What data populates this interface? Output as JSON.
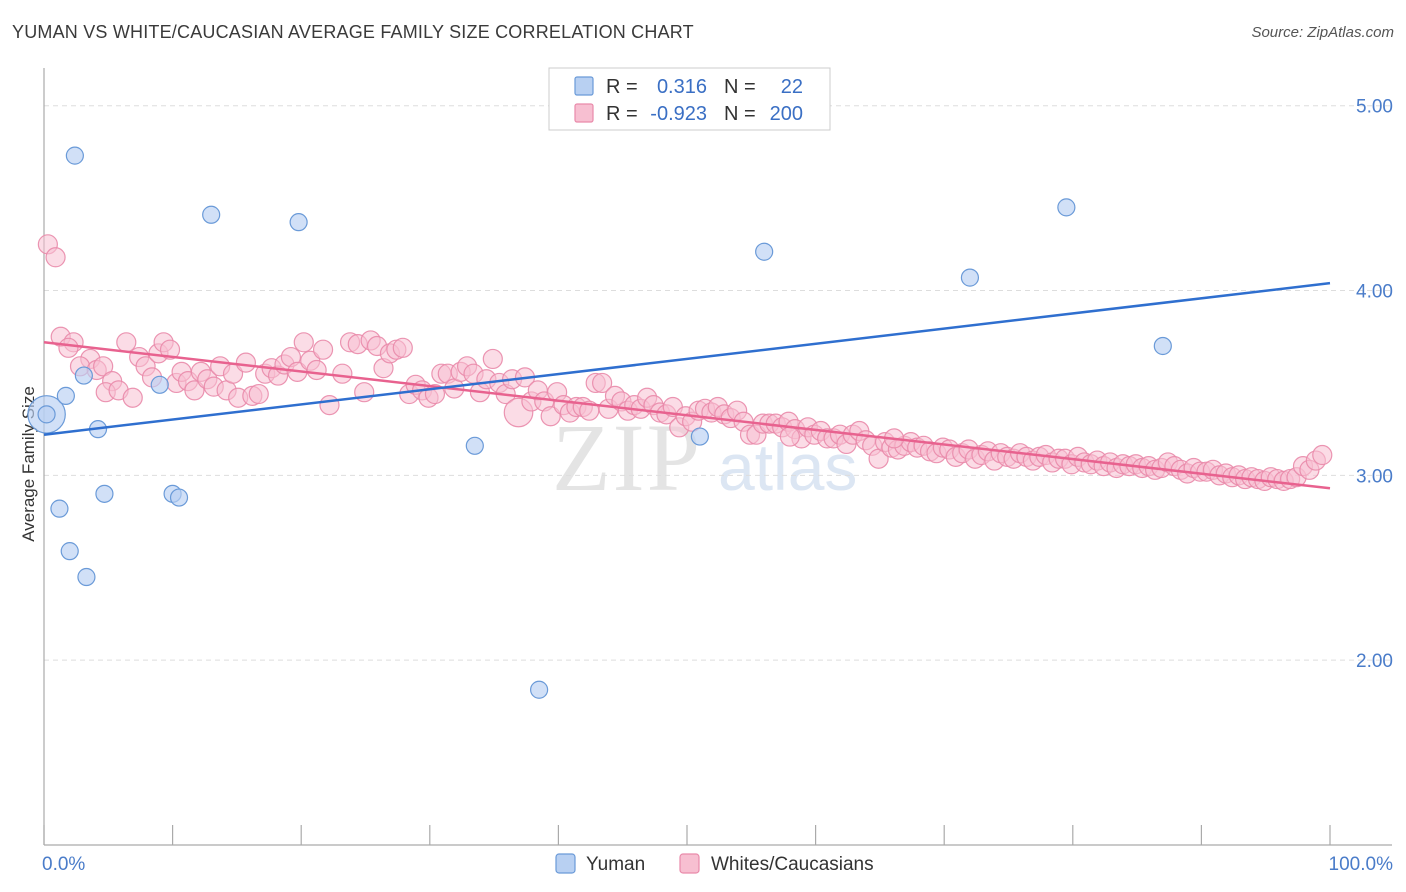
{
  "title": "YUMAN VS WHITE/CAUCASIAN AVERAGE FAMILY SIZE CORRELATION CHART",
  "source": "Source: ZipAtlas.com",
  "watermark": {
    "zip": "ZIP",
    "atlas": "atlas"
  },
  "legend": {
    "r_label": "R =",
    "n_label": "N =",
    "rows": [
      {
        "r": "0.316",
        "n": "22"
      },
      {
        "r": "-0.923",
        "n": "200"
      }
    ]
  },
  "chart_data": {
    "type": "scatter",
    "title": "YUMAN VS WHITE/CAUCASIAN AVERAGE FAMILY SIZE CORRELATION CHART",
    "xlabel": "",
    "ylabel": "Average Family Size",
    "xlim": [
      0,
      100
    ],
    "ylim": [
      1.0,
      5.15
    ],
    "x_tick_labels": [
      "0.0%",
      "100.0%"
    ],
    "y_ticks": [
      {
        "value": 2.0,
        "label": "2.00"
      },
      {
        "value": 3.0,
        "label": "3.00"
      },
      {
        "value": 4.0,
        "label": "4.00"
      },
      {
        "value": 5.0,
        "label": "5.00"
      }
    ],
    "colors": {
      "yuman_fill": "#b8d0f2",
      "yuman_stroke": "#6a9ad8",
      "yuman_line": "#2f6fcf",
      "white_fill": "#f7bfd1",
      "white_stroke": "#e98aaa",
      "white_line": "#e8628f",
      "grid": "#dddddd",
      "axis": "#aaaaaa"
    },
    "series": [
      {
        "name": "Yuman",
        "r": 0.316,
        "n": 22,
        "trend": {
          "x0": 0,
          "y0": 3.22,
          "x1": 100,
          "y1": 4.04
        },
        "points": [
          {
            "x": 0.2,
            "y": 3.33,
            "s": 2.2
          },
          {
            "x": 2.4,
            "y": 4.73
          },
          {
            "x": 13.0,
            "y": 4.41
          },
          {
            "x": 19.8,
            "y": 4.37
          },
          {
            "x": 1.7,
            "y": 3.43
          },
          {
            "x": 3.1,
            "y": 3.54
          },
          {
            "x": 9.0,
            "y": 3.49
          },
          {
            "x": 4.2,
            "y": 3.25
          },
          {
            "x": 4.7,
            "y": 2.9
          },
          {
            "x": 1.2,
            "y": 2.82
          },
          {
            "x": 2.0,
            "y": 2.59
          },
          {
            "x": 3.3,
            "y": 2.45
          },
          {
            "x": 10.0,
            "y": 2.9
          },
          {
            "x": 10.5,
            "y": 2.88
          },
          {
            "x": 33.5,
            "y": 3.16
          },
          {
            "x": 38.5,
            "y": 1.84
          },
          {
            "x": 51.0,
            "y": 3.21
          },
          {
            "x": 56.0,
            "y": 4.21
          },
          {
            "x": 72.0,
            "y": 4.07
          },
          {
            "x": 79.5,
            "y": 4.45
          },
          {
            "x": 87.0,
            "y": 3.7
          },
          {
            "x": 0.2,
            "y": 3.33
          }
        ]
      },
      {
        "name": "Whites/Caucasians",
        "r": -0.923,
        "n": 200,
        "trend": {
          "x0": 0,
          "y0": 3.72,
          "x1": 100,
          "y1": 2.93
        },
        "points": [
          {
            "x": 0.3,
            "y": 4.25
          },
          {
            "x": 0.9,
            "y": 4.18
          },
          {
            "x": 1.3,
            "y": 3.75
          },
          {
            "x": 2.3,
            "y": 3.72
          },
          {
            "x": 1.9,
            "y": 3.69
          },
          {
            "x": 3.6,
            "y": 3.63
          },
          {
            "x": 2.8,
            "y": 3.59
          },
          {
            "x": 4.1,
            "y": 3.57
          },
          {
            "x": 4.6,
            "y": 3.59
          },
          {
            "x": 5.3,
            "y": 3.51
          },
          {
            "x": 4.8,
            "y": 3.45
          },
          {
            "x": 5.8,
            "y": 3.46
          },
          {
            "x": 6.4,
            "y": 3.72
          },
          {
            "x": 6.9,
            "y": 3.42
          },
          {
            "x": 7.4,
            "y": 3.64
          },
          {
            "x": 7.9,
            "y": 3.59
          },
          {
            "x": 8.4,
            "y": 3.53
          },
          {
            "x": 8.9,
            "y": 3.66
          },
          {
            "x": 9.3,
            "y": 3.72
          },
          {
            "x": 9.8,
            "y": 3.68
          },
          {
            "x": 10.3,
            "y": 3.5
          },
          {
            "x": 10.7,
            "y": 3.56
          },
          {
            "x": 11.2,
            "y": 3.51
          },
          {
            "x": 11.7,
            "y": 3.46
          },
          {
            "x": 12.2,
            "y": 3.56
          },
          {
            "x": 12.7,
            "y": 3.52
          },
          {
            "x": 13.2,
            "y": 3.48
          },
          {
            "x": 13.7,
            "y": 3.59
          },
          {
            "x": 14.2,
            "y": 3.46
          },
          {
            "x": 14.7,
            "y": 3.55
          },
          {
            "x": 15.1,
            "y": 3.42
          },
          {
            "x": 15.7,
            "y": 3.61
          },
          {
            "x": 16.2,
            "y": 3.43
          },
          {
            "x": 16.7,
            "y": 3.44
          },
          {
            "x": 17.2,
            "y": 3.55
          },
          {
            "x": 17.7,
            "y": 3.58
          },
          {
            "x": 18.2,
            "y": 3.54
          },
          {
            "x": 18.7,
            "y": 3.6
          },
          {
            "x": 19.2,
            "y": 3.64
          },
          {
            "x": 19.7,
            "y": 3.56
          },
          {
            "x": 20.2,
            "y": 3.72
          },
          {
            "x": 20.7,
            "y": 3.62
          },
          {
            "x": 21.2,
            "y": 3.57
          },
          {
            "x": 21.7,
            "y": 3.68
          },
          {
            "x": 22.2,
            "y": 3.38
          },
          {
            "x": 23.2,
            "y": 3.55
          },
          {
            "x": 23.8,
            "y": 3.72
          },
          {
            "x": 24.4,
            "y": 3.71
          },
          {
            "x": 24.9,
            "y": 3.45
          },
          {
            "x": 25.4,
            "y": 3.73
          },
          {
            "x": 25.9,
            "y": 3.7
          },
          {
            "x": 26.4,
            "y": 3.58
          },
          {
            "x": 26.9,
            "y": 3.66
          },
          {
            "x": 27.4,
            "y": 3.68
          },
          {
            "x": 27.9,
            "y": 3.69
          },
          {
            "x": 28.4,
            "y": 3.44
          },
          {
            "x": 28.9,
            "y": 3.49
          },
          {
            "x": 29.4,
            "y": 3.46
          },
          {
            "x": 29.9,
            "y": 3.42
          },
          {
            "x": 30.4,
            "y": 3.44
          },
          {
            "x": 30.9,
            "y": 3.55
          },
          {
            "x": 31.4,
            "y": 3.55
          },
          {
            "x": 31.9,
            "y": 3.47
          },
          {
            "x": 32.4,
            "y": 3.56
          },
          {
            "x": 32.9,
            "y": 3.59
          },
          {
            "x": 33.4,
            "y": 3.55
          },
          {
            "x": 33.9,
            "y": 3.45
          },
          {
            "x": 34.4,
            "y": 3.52
          },
          {
            "x": 34.9,
            "y": 3.63
          },
          {
            "x": 35.4,
            "y": 3.5
          },
          {
            "x": 35.9,
            "y": 3.44
          },
          {
            "x": 36.4,
            "y": 3.52
          },
          {
            "x": 36.9,
            "y": 3.34,
            "s": 1.5
          },
          {
            "x": 37.4,
            "y": 3.53
          },
          {
            "x": 37.9,
            "y": 3.4
          },
          {
            "x": 38.4,
            "y": 3.46
          },
          {
            "x": 38.9,
            "y": 3.4
          },
          {
            "x": 39.4,
            "y": 3.32
          },
          {
            "x": 39.9,
            "y": 3.45
          },
          {
            "x": 40.4,
            "y": 3.38
          },
          {
            "x": 40.9,
            "y": 3.34
          },
          {
            "x": 41.4,
            "y": 3.37
          },
          {
            "x": 41.9,
            "y": 3.37
          },
          {
            "x": 42.4,
            "y": 3.35
          },
          {
            "x": 42.9,
            "y": 3.5
          },
          {
            "x": 43.4,
            "y": 3.5
          },
          {
            "x": 43.9,
            "y": 3.36
          },
          {
            "x": 44.4,
            "y": 3.43
          },
          {
            "x": 44.9,
            "y": 3.4
          },
          {
            "x": 45.4,
            "y": 3.35
          },
          {
            "x": 45.9,
            "y": 3.38
          },
          {
            "x": 46.4,
            "y": 3.36
          },
          {
            "x": 46.9,
            "y": 3.42
          },
          {
            "x": 47.4,
            "y": 3.38
          },
          {
            "x": 47.9,
            "y": 3.34
          },
          {
            "x": 48.4,
            "y": 3.33
          },
          {
            "x": 48.9,
            "y": 3.37
          },
          {
            "x": 49.4,
            "y": 3.26
          },
          {
            "x": 49.9,
            "y": 3.32
          },
          {
            "x": 50.4,
            "y": 3.29
          },
          {
            "x": 50.9,
            "y": 3.35
          },
          {
            "x": 51.4,
            "y": 3.36
          },
          {
            "x": 51.9,
            "y": 3.34
          },
          {
            "x": 52.4,
            "y": 3.37
          },
          {
            "x": 52.9,
            "y": 3.33
          },
          {
            "x": 53.4,
            "y": 3.31
          },
          {
            "x": 53.9,
            "y": 3.35
          },
          {
            "x": 54.4,
            "y": 3.29
          },
          {
            "x": 54.9,
            "y": 3.22
          },
          {
            "x": 55.4,
            "y": 3.22
          },
          {
            "x": 55.9,
            "y": 3.28
          },
          {
            "x": 56.4,
            "y": 3.28
          },
          {
            "x": 56.9,
            "y": 3.28
          },
          {
            "x": 57.4,
            "y": 3.26
          },
          {
            "x": 57.9,
            "y": 3.29
          },
          {
            "x": 58.4,
            "y": 3.25
          },
          {
            "x": 58.9,
            "y": 3.2
          },
          {
            "x": 59.4,
            "y": 3.26
          },
          {
            "x": 59.9,
            "y": 3.22
          },
          {
            "x": 60.4,
            "y": 3.24
          },
          {
            "x": 60.9,
            "y": 3.2
          },
          {
            "x": 61.4,
            "y": 3.2
          },
          {
            "x": 61.9,
            "y": 3.22
          },
          {
            "x": 62.4,
            "y": 3.17
          },
          {
            "x": 62.9,
            "y": 3.22
          },
          {
            "x": 63.4,
            "y": 3.24
          },
          {
            "x": 63.9,
            "y": 3.19
          },
          {
            "x": 64.4,
            "y": 3.16
          },
          {
            "x": 64.9,
            "y": 3.09
          },
          {
            "x": 65.4,
            "y": 3.18
          },
          {
            "x": 65.9,
            "y": 3.15
          },
          {
            "x": 66.4,
            "y": 3.14
          },
          {
            "x": 66.9,
            "y": 3.16
          },
          {
            "x": 67.4,
            "y": 3.18
          },
          {
            "x": 67.9,
            "y": 3.15
          },
          {
            "x": 68.4,
            "y": 3.16
          },
          {
            "x": 68.9,
            "y": 3.13
          },
          {
            "x": 69.4,
            "y": 3.12
          },
          {
            "x": 69.9,
            "y": 3.15
          },
          {
            "x": 70.4,
            "y": 3.14
          },
          {
            "x": 70.9,
            "y": 3.1
          },
          {
            "x": 71.4,
            "y": 3.12
          },
          {
            "x": 71.9,
            "y": 3.14
          },
          {
            "x": 72.4,
            "y": 3.09
          },
          {
            "x": 72.9,
            "y": 3.11
          },
          {
            "x": 73.4,
            "y": 3.13
          },
          {
            "x": 73.9,
            "y": 3.08
          },
          {
            "x": 74.4,
            "y": 3.12
          },
          {
            "x": 74.9,
            "y": 3.1
          },
          {
            "x": 75.4,
            "y": 3.09
          },
          {
            "x": 75.9,
            "y": 3.12
          },
          {
            "x": 76.4,
            "y": 3.1
          },
          {
            "x": 76.9,
            "y": 3.08
          },
          {
            "x": 77.4,
            "y": 3.1
          },
          {
            "x": 77.9,
            "y": 3.11
          },
          {
            "x": 78.4,
            "y": 3.07
          },
          {
            "x": 78.9,
            "y": 3.09
          },
          {
            "x": 79.4,
            "y": 3.09
          },
          {
            "x": 79.9,
            "y": 3.06
          },
          {
            "x": 80.4,
            "y": 3.1
          },
          {
            "x": 80.9,
            "y": 3.07
          },
          {
            "x": 81.4,
            "y": 3.06
          },
          {
            "x": 81.9,
            "y": 3.08
          },
          {
            "x": 82.4,
            "y": 3.05
          },
          {
            "x": 82.9,
            "y": 3.07
          },
          {
            "x": 83.4,
            "y": 3.04
          },
          {
            "x": 83.9,
            "y": 3.06
          },
          {
            "x": 84.4,
            "y": 3.05
          },
          {
            "x": 84.9,
            "y": 3.06
          },
          {
            "x": 85.4,
            "y": 3.04
          },
          {
            "x": 85.9,
            "y": 3.05
          },
          {
            "x": 86.4,
            "y": 3.03
          },
          {
            "x": 86.9,
            "y": 3.04
          },
          {
            "x": 87.4,
            "y": 3.07
          },
          {
            "x": 87.9,
            "y": 3.05
          },
          {
            "x": 88.4,
            "y": 3.03
          },
          {
            "x": 88.9,
            "y": 3.01
          },
          {
            "x": 89.4,
            "y": 3.04
          },
          {
            "x": 89.9,
            "y": 3.02
          },
          {
            "x": 90.4,
            "y": 3.02
          },
          {
            "x": 90.9,
            "y": 3.03
          },
          {
            "x": 91.4,
            "y": 3.0
          },
          {
            "x": 91.9,
            "y": 3.01
          },
          {
            "x": 92.4,
            "y": 2.99
          },
          {
            "x": 92.9,
            "y": 3.0
          },
          {
            "x": 93.4,
            "y": 2.98
          },
          {
            "x": 93.9,
            "y": 2.99
          },
          {
            "x": 94.4,
            "y": 2.98
          },
          {
            "x": 94.9,
            "y": 2.97
          },
          {
            "x": 95.4,
            "y": 2.99
          },
          {
            "x": 95.9,
            "y": 2.98
          },
          {
            "x": 96.4,
            "y": 2.97
          },
          {
            "x": 96.9,
            "y": 2.98
          },
          {
            "x": 97.4,
            "y": 2.99
          },
          {
            "x": 97.9,
            "y": 3.05
          },
          {
            "x": 98.4,
            "y": 3.03
          },
          {
            "x": 98.9,
            "y": 3.08
          },
          {
            "x": 99.4,
            "y": 3.11
          },
          {
            "x": 58.0,
            "y": 3.21
          },
          {
            "x": 66.1,
            "y": 3.2
          }
        ]
      }
    ]
  }
}
